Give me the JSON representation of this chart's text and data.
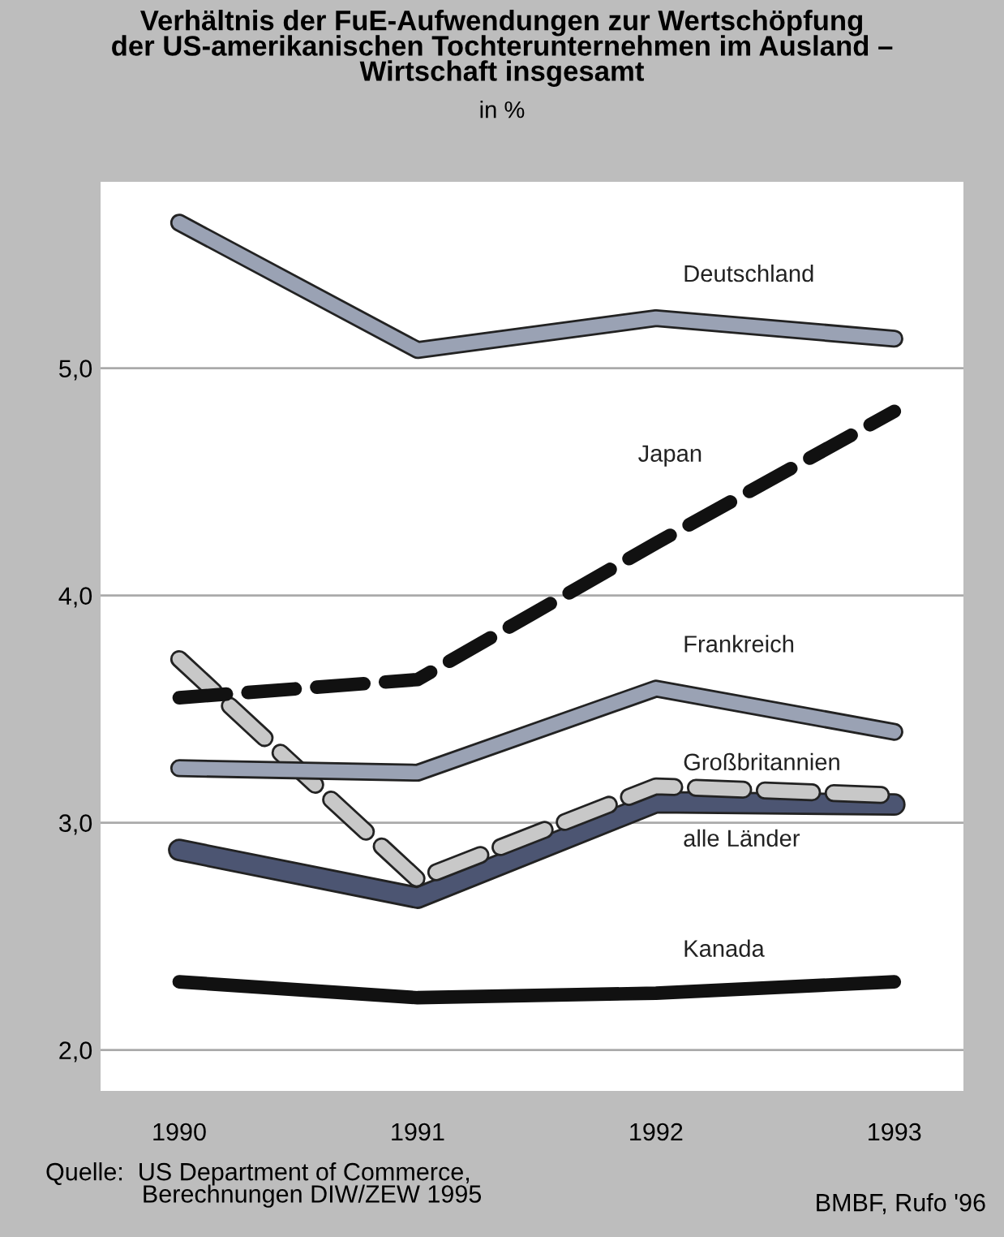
{
  "chart_data": {
    "type": "line",
    "title": "Verhältnis der FuE-Aufwendungen zur Wertschöpfung\nder US-amerikanischen Tochterunternehmen im Ausland –\nWirtschaft insgesamt",
    "subtitle": "in %",
    "x": [
      1990,
      1991,
      1992,
      1993
    ],
    "xlim": [
      1989.67,
      1993.29
    ],
    "xticks": [
      1990,
      1991,
      1992,
      1993
    ],
    "ylim": [
      1.82,
      5.82
    ],
    "yticks": [
      {
        "value": 2,
        "label": "2,0"
      },
      {
        "value": 3,
        "label": "3,0"
      },
      {
        "value": 4,
        "label": "4,0"
      },
      {
        "value": 5,
        "label": "5,0"
      }
    ],
    "grid": "y",
    "legend": false,
    "series": [
      {
        "name": "Deutschland",
        "color": "#9aa2b4",
        "line_style": "solid",
        "values": [
          5.64,
          5.08,
          5.22,
          5.13
        ]
      },
      {
        "name": "Japan",
        "color": "#111111",
        "line_style": "dashed",
        "values": [
          3.55,
          3.63,
          4.23,
          4.81
        ]
      },
      {
        "name": "Frankreich",
        "color": "#9aa2b4",
        "line_style": "solid",
        "values": [
          3.24,
          3.22,
          3.59,
          3.4
        ]
      },
      {
        "name": "Großbritannien",
        "color": "#c8c8c8",
        "line_style": "dashed",
        "values": [
          3.72,
          2.75,
          3.16,
          3.12
        ]
      },
      {
        "name": "alle Länder",
        "color": "#4c5572",
        "line_style": "solid",
        "values": [
          2.88,
          2.67,
          3.09,
          3.08
        ]
      },
      {
        "name": "Kanada",
        "color": "#111111",
        "line_style": "solid",
        "values": [
          2.3,
          2.23,
          2.25,
          2.3
        ]
      }
    ],
    "annotations": [
      "Quelle:  US Department of Commerce,\n              Berechnungen DIW/ZEW 1995",
      "BMBF, Rufo '96"
    ]
  }
}
